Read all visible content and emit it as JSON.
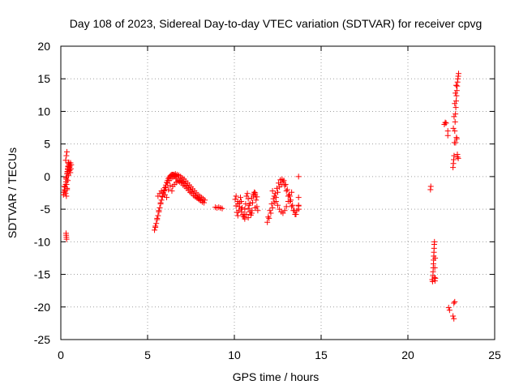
{
  "chart_data": {
    "type": "scatter",
    "title": "Day 108 of 2023, Sidereal Day-to-day VTEC variation (SDTVAR) for receiver cpvg",
    "xlabel": "GPS time / hours",
    "ylabel": "SDTVAR / TECUs",
    "xlim": [
      0,
      25
    ],
    "ylim": [
      -25,
      20
    ],
    "xticks": [
      0,
      5,
      10,
      15,
      20,
      25
    ],
    "yticks": [
      -25,
      -20,
      -15,
      -10,
      -5,
      0,
      5,
      10,
      15,
      20
    ],
    "grid": true,
    "marker": "plus",
    "color": "#ff0000",
    "series": [
      {
        "name": "SDTVAR",
        "x": [
          0.15,
          0.18,
          0.22,
          0.25,
          0.28,
          0.3,
          0.32,
          0.34,
          0.36,
          0.38,
          0.4,
          0.42,
          0.44,
          0.46,
          0.48,
          0.5,
          0.52,
          0.55,
          0.58,
          0.6,
          0.2,
          0.24,
          0.28,
          0.32,
          0.36,
          0.4,
          0.44,
          0.48,
          0.52,
          0.56,
          0.3,
          0.33,
          0.36,
          0.38,
          0.4,
          0.42,
          0.28,
          0.32,
          0.35,
          0.3,
          0.31,
          0.32,
          0.33,
          5.4,
          5.45,
          5.5,
          5.55,
          5.6,
          5.65,
          5.7,
          5.75,
          5.8,
          5.85,
          5.9,
          5.95,
          6.0,
          6.05,
          6.1,
          6.15,
          6.2,
          6.25,
          6.3,
          6.35,
          6.4,
          6.45,
          6.5,
          6.55,
          6.6,
          5.45,
          5.55,
          5.65,
          5.75,
          5.85,
          5.95,
          6.05,
          6.15,
          6.25,
          6.35,
          6.45,
          6.55,
          6.65,
          6.6,
          6.7,
          6.8,
          6.9,
          7.0,
          7.1,
          7.2,
          7.3,
          7.4,
          7.5,
          7.6,
          7.7,
          7.8,
          7.9,
          8.0,
          8.1,
          8.2,
          8.3,
          6.65,
          6.75,
          6.85,
          6.95,
          7.05,
          7.15,
          7.25,
          7.35,
          7.45,
          7.55,
          7.65,
          7.75,
          7.85,
          7.95,
          8.05,
          8.15,
          8.25,
          6.45,
          6.55,
          6.65,
          6.75,
          6.85,
          6.95,
          7.05,
          7.15,
          7.25,
          7.35,
          7.45,
          7.55,
          7.65,
          7.75,
          7.85,
          7.95,
          8.05,
          5.6,
          5.7,
          5.8,
          5.9,
          6.0,
          6.1,
          6.2,
          6.3,
          6.4,
          8.9,
          9.0,
          9.1,
          9.2,
          9.3,
          10.05,
          10.1,
          10.15,
          10.2,
          10.25,
          10.3,
          10.35,
          10.4,
          10.45,
          10.5,
          10.55,
          10.6,
          10.65,
          10.7,
          10.75,
          10.8,
          10.85,
          10.9,
          10.95,
          11.0,
          11.05,
          11.1,
          11.15,
          11.2,
          11.25,
          11.3,
          11.35,
          10.1,
          10.2,
          10.3,
          10.4,
          10.5,
          10.6,
          10.7,
          10.8,
          10.9,
          11.0,
          11.1,
          11.2,
          11.3,
          10.2,
          10.4,
          10.6,
          10.8,
          11.0,
          11.2,
          11.9,
          12.0,
          12.1,
          12.2,
          12.3,
          12.4,
          12.5,
          12.6,
          12.7,
          12.8,
          12.9,
          13.0,
          13.1,
          13.2,
          13.3,
          13.4,
          13.5,
          13.6,
          13.7,
          11.95,
          12.05,
          12.15,
          12.25,
          12.35,
          12.45,
          12.55,
          12.65,
          12.75,
          12.85,
          12.95,
          13.05,
          13.15,
          13.25,
          13.35,
          13.45,
          13.55,
          12.2,
          12.3,
          12.4,
          12.5,
          12.6,
          12.7,
          12.8,
          12.9,
          13.0,
          13.1,
          13.2,
          13.3,
          13.7,
          13.7,
          13.7,
          13.7,
          21.3,
          21.32,
          21.4,
          21.42,
          21.44,
          21.46,
          21.48,
          21.5,
          21.52,
          21.54,
          21.56,
          21.58,
          21.45,
          21.47,
          21.49,
          21.51,
          21.53,
          21.55,
          21.57,
          22.1,
          22.15,
          22.2,
          22.3,
          22.3,
          22.35,
          22.4,
          22.6,
          22.65,
          22.6,
          22.62,
          22.64,
          22.66,
          22.68,
          22.7,
          22.72,
          22.74,
          22.76,
          22.78,
          22.8,
          22.82,
          22.84,
          22.86,
          22.88,
          22.9,
          22.92,
          22.62,
          22.66,
          22.7,
          22.74,
          22.78,
          22.82,
          22.86,
          22.9,
          22.65,
          22.7,
          22.75,
          22.8,
          22.85
        ],
        "y": [
          -2.8,
          -2.4,
          -2.0,
          -1.6,
          -1.2,
          -0.8,
          -0.4,
          0.0,
          0.4,
          0.8,
          1.2,
          1.6,
          2.0,
          2.2,
          1.8,
          1.4,
          1.0,
          0.6,
          1.2,
          1.8,
          -1.5,
          -2.2,
          -2.6,
          -3.0,
          -1.8,
          -0.6,
          0.2,
          0.9,
          1.6,
          2.1,
          -0.2,
          -1.2,
          -2.0,
          0.6,
          1.1,
          1.5,
          2.5,
          3.2,
          3.8,
          -8.7,
          -9.0,
          -9.3,
          -9.6,
          -8.2,
          -7.8,
          -7.2,
          -6.6,
          -6.0,
          -5.4,
          -4.8,
          -4.2,
          -3.6,
          -3.1,
          -2.6,
          -2.1,
          -1.7,
          -1.3,
          -0.9,
          -0.6,
          -0.3,
          -0.1,
          0.1,
          0.2,
          0.3,
          0.3,
          0.3,
          0.2,
          0.2,
          -7.6,
          -6.4,
          -5.2,
          -4.0,
          -3.0,
          -2.2,
          -1.6,
          -1.0,
          -0.6,
          -0.3,
          -0.1,
          0.0,
          0.1,
          0.4,
          0.3,
          0.2,
          0.0,
          -0.2,
          -0.4,
          -0.7,
          -1.0,
          -1.3,
          -1.6,
          -1.9,
          -2.2,
          -2.5,
          -2.8,
          -3.0,
          -3.2,
          -3.4,
          -3.6,
          -0.3,
          -0.5,
          -0.8,
          -1.0,
          -1.3,
          -1.5,
          -1.8,
          -2.1,
          -2.4,
          -2.6,
          -2.9,
          -3.1,
          -3.3,
          -3.5,
          -3.7,
          -3.9,
          -4.0,
          -1.5,
          -1.2,
          -0.9,
          -0.7,
          -0.6,
          -0.7,
          -0.9,
          -1.1,
          -1.4,
          -1.7,
          -2.0,
          -2.3,
          -2.6,
          -2.9,
          -3.2,
          -3.4,
          -3.6,
          -3.0,
          -2.6,
          -2.2,
          -2.4,
          -2.8,
          -3.2,
          -2.0,
          -1.4,
          -2.2,
          -4.7,
          -4.8,
          -4.7,
          -4.8,
          -4.9,
          -3.5,
          -4.5,
          -5.5,
          -6.0,
          -5.2,
          -4.0,
          -3.2,
          -3.8,
          -4.8,
          -5.8,
          -6.2,
          -5.0,
          -4.2,
          -3.0,
          -2.6,
          -3.4,
          -4.4,
          -5.4,
          -5.9,
          -5.2,
          -4.0,
          -3.0,
          -2.4,
          -2.8,
          -3.6,
          -4.6,
          -5.2,
          -3.0,
          -3.8,
          -4.6,
          -5.4,
          -6.0,
          -6.5,
          -5.8,
          -4.9,
          -4.1,
          -3.3,
          -2.7,
          -2.5,
          -3.1,
          -4.2,
          -5.0,
          -5.8,
          -6.3,
          -5.6,
          -4.8,
          -7.0,
          -6.4,
          -5.6,
          -4.8,
          -4.0,
          -3.2,
          -2.4,
          -1.6,
          -1.2,
          -0.8,
          -1.4,
          -2.2,
          -3.0,
          -3.8,
          -4.6,
          -5.2,
          -5.8,
          -5.2,
          -4.4,
          -6.2,
          -5.2,
          -4.2,
          -3.4,
          -2.6,
          -1.8,
          -1.0,
          -0.5,
          -0.4,
          -0.6,
          -1.2,
          -2.0,
          -2.8,
          -3.6,
          -4.4,
          -5.2,
          -5.8,
          -2.2,
          -3.0,
          -3.8,
          -4.4,
          -5.0,
          -5.4,
          -5.6,
          -5.2,
          -4.6,
          -3.8,
          -3.0,
          -2.4,
          0.0,
          -3.2,
          -4.5,
          -5.0,
          -2.0,
          -1.5,
          -15.8,
          -16.1,
          -15.2,
          -14.0,
          -12.8,
          -11.6,
          -10.4,
          -15.5,
          -16.0,
          -15.6,
          -14.6,
          -13.4,
          -12.2,
          -11.0,
          -10.0,
          -14.0,
          -12.5,
          8.0,
          8.3,
          8.2,
          7.0,
          6.3,
          -20.1,
          -20.5,
          -21.4,
          -21.8,
          1.4,
          2.0,
          2.6,
          3.2,
          5.2,
          7.0,
          8.4,
          9.6,
          10.6,
          11.6,
          12.4,
          13.2,
          13.9,
          14.5,
          15.0,
          15.4,
          15.8,
          7.4,
          9.2,
          11.2,
          12.8,
          14.0,
          5.8,
          3.0,
          2.8,
          -19.4,
          -19.2,
          5.2,
          6.0,
          3.4
        ]
      }
    ]
  }
}
